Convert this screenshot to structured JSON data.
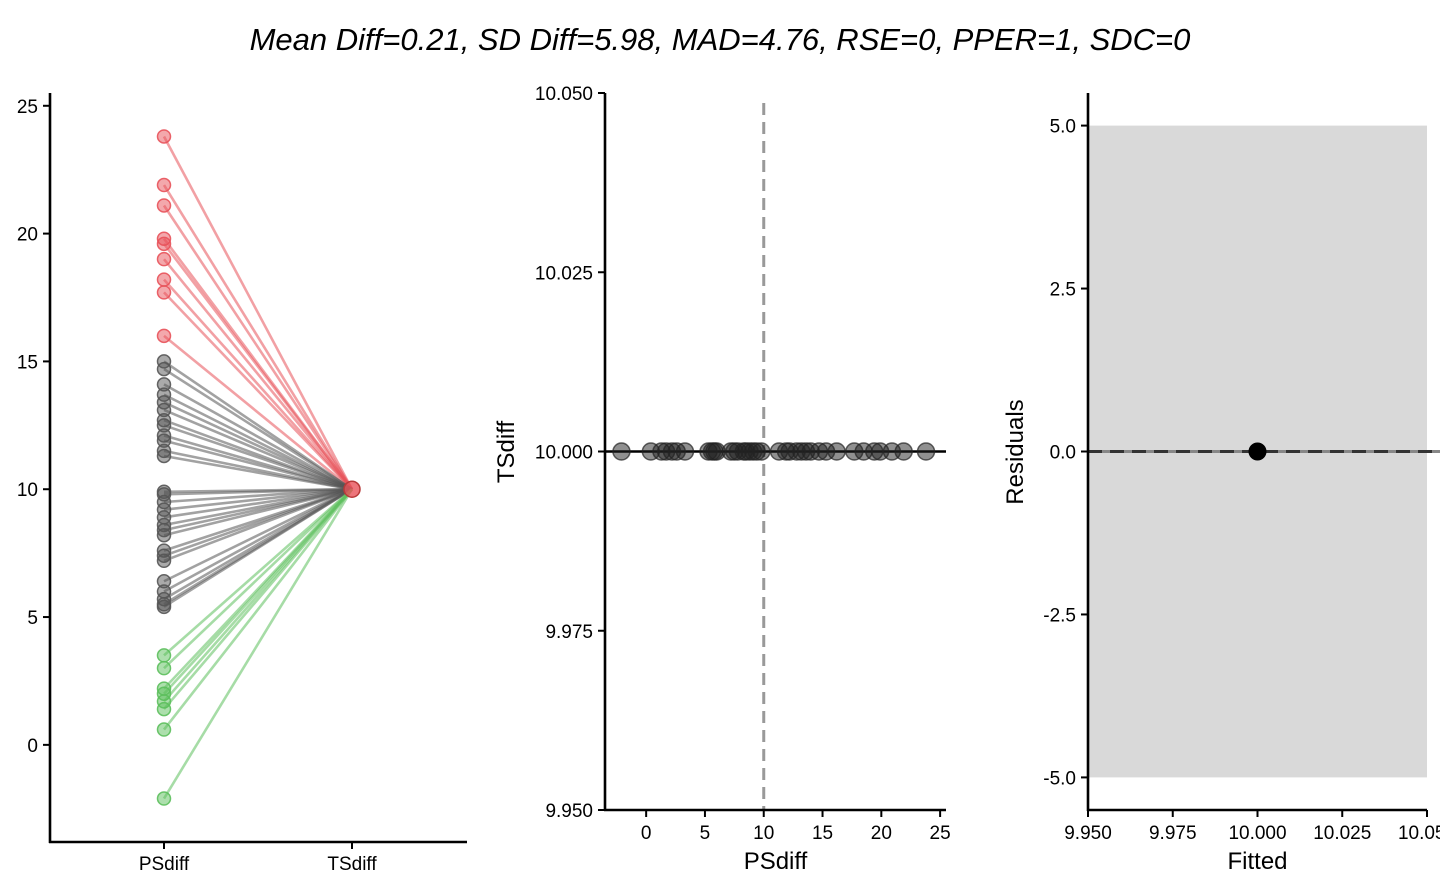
{
  "title": "Mean Diff=0.21, SD Diff=5.98, MAD=4.76, RSE=0, PPER=1, SDC=0",
  "colors": {
    "higher": "#e8525a",
    "lower": "#5cbf5c",
    "neutral": "#555555",
    "ribbon": "#d9d9d9"
  },
  "chart_data": [
    {
      "type": "line",
      "name": "paired-slope",
      "categories": [
        "PSdiff",
        "TSdiff"
      ],
      "ylim": [
        -3.8,
        25.5
      ],
      "yticks": [
        "0",
        "5",
        "10",
        "15",
        "20",
        "25"
      ],
      "ytick_values": [
        0,
        5,
        10,
        15,
        20,
        25
      ],
      "end_value": 10,
      "start_values": [
        23.8,
        21.9,
        21.1,
        19.8,
        19.6,
        19.0,
        18.2,
        17.7,
        16.0,
        15.0,
        14.7,
        14.1,
        13.7,
        13.4,
        13.1,
        12.7,
        12.5,
        12.1,
        11.9,
        11.5,
        11.3,
        9.9,
        9.8,
        9.5,
        9.2,
        8.9,
        8.6,
        8.4,
        8.2,
        7.6,
        7.4,
        7.2,
        6.4,
        6.0,
        5.7,
        5.5,
        5.4,
        3.5,
        3.0,
        2.2,
        2.0,
        1.7,
        1.4,
        0.6,
        -2.1
      ]
    },
    {
      "type": "scatter",
      "name": "ps-vs-ts",
      "xlabel": "PSdiff",
      "ylabel": "TSdiff",
      "xlim": [
        -3.5,
        25.5
      ],
      "ylim": [
        9.95,
        10.05
      ],
      "xticks": [
        "0",
        "5",
        "10",
        "15",
        "20",
        "25"
      ],
      "xtick_values": [
        0,
        5,
        10,
        15,
        20,
        25
      ],
      "yticks": [
        "9.950",
        "9.975",
        "10.000",
        "10.025",
        "10.050"
      ],
      "ytick_values": [
        9.95,
        9.975,
        10.0,
        10.025,
        10.05
      ],
      "vline_x": 10,
      "hline_y": 10,
      "y_value": 10,
      "x_values": [
        -2.1,
        0.4,
        1.3,
        1.7,
        2.2,
        2.6,
        3.3,
        5.3,
        5.6,
        5.8,
        6.0,
        7.2,
        7.5,
        7.8,
        8.3,
        8.5,
        8.8,
        9.1,
        9.4,
        9.8,
        11.3,
        11.9,
        12.2,
        12.8,
        13.2,
        13.6,
        14.0,
        14.7,
        15.3,
        16.2,
        17.7,
        18.5,
        19.4,
        19.9,
        20.9,
        21.9,
        23.8
      ]
    },
    {
      "type": "scatter",
      "name": "residuals-vs-fitted",
      "xlabel": "Fitted",
      "ylabel": "Residuals",
      "xlim": [
        9.95,
        10.05
      ],
      "ylim": [
        -5.5,
        5.5
      ],
      "xticks": [
        "9.950",
        "9.975",
        "10.000",
        "10.025",
        "10.050"
      ],
      "xtick_values": [
        9.95,
        9.975,
        10.0,
        10.025,
        10.05
      ],
      "yticks": [
        "-5.0",
        "-2.5",
        "0.0",
        "2.5",
        "5.0"
      ],
      "ytick_values": [
        -5.0,
        -2.5,
        0.0,
        2.5,
        5.0
      ],
      "ribbon": [
        -5.0,
        5.0
      ],
      "hline_y": 0,
      "points": [
        {
          "x": 10.0,
          "y": 0.0
        }
      ]
    }
  ]
}
